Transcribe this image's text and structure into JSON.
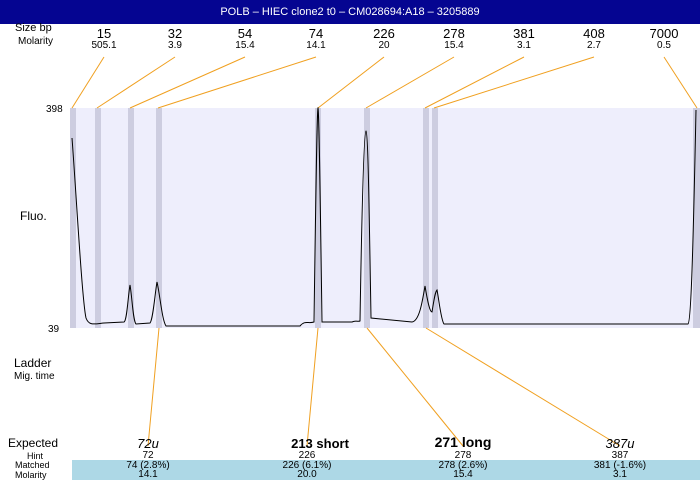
{
  "title": "POLB – HIEC clone2 t0 – CM028694:A18 – 3205889",
  "header": {
    "size_label": "Size bp",
    "molarity_label": "Molarity"
  },
  "ladder_sizes": [
    "15",
    "32",
    "54",
    "74",
    "226",
    "278",
    "381",
    "408",
    "7000"
  ],
  "ladder_molarities": [
    "505.1",
    "3.9",
    "15.4",
    "14.1",
    "20",
    "15.4",
    "3.1",
    "2.7",
    "0.5"
  ],
  "y_axis": {
    "label": "Fluo.",
    "max": "398",
    "min": "39"
  },
  "ladder_label": "Ladder",
  "mig_time_label": "Mig. time",
  "table_labels": {
    "expected": "Expected",
    "hint": "Hint",
    "matched": "Matched",
    "molarity": "Molarity"
  },
  "peaks": [
    {
      "name": "72u",
      "hint": "72",
      "matched": "74 (2.8%)",
      "molarity": "14.1",
      "style": "italic"
    },
    {
      "name": "213 short",
      "hint": "226",
      "matched": "226 (6.1%)",
      "molarity": "20.0",
      "style": "bold"
    },
    {
      "name": "271 long",
      "hint": "278",
      "matched": "278 (2.6%)",
      "molarity": "15.4",
      "style": "bold"
    },
    {
      "name": "387u",
      "hint": "387",
      "matched": "381 (-1.6%)",
      "molarity": "3.1",
      "style": "italic"
    }
  ],
  "colors": {
    "title_bg": "#050591",
    "plot_bg": "#eeeefc",
    "band": "#cdcde0",
    "leader_line": "#f0a020",
    "table_band": "#add8e6"
  }
}
